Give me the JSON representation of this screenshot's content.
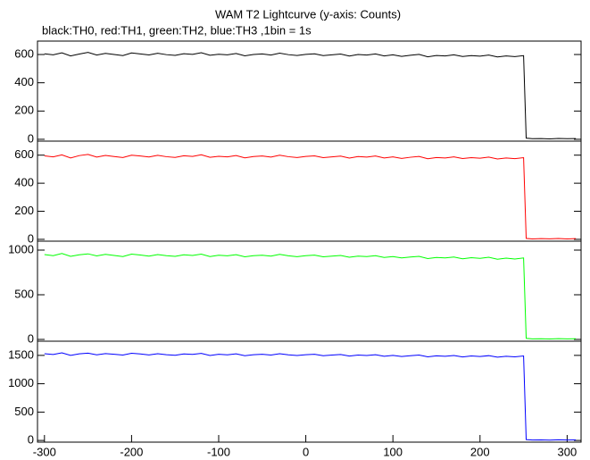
{
  "chart_data": [
    {
      "type": "line",
      "title": "WAM T2 Lightcurve (y-axis: Counts)",
      "subtitle": "black:TH0, red:TH1, green:TH2, blue:TH3 ,1bin = 1s",
      "x": [
        -300,
        -290,
        -280,
        -270,
        -260,
        -250,
        -240,
        -230,
        -220,
        -210,
        -200,
        -190,
        -180,
        -170,
        -160,
        -150,
        -140,
        -130,
        -120,
        -110,
        -100,
        -90,
        -80,
        -70,
        -60,
        -50,
        -40,
        -30,
        -20,
        -10,
        0,
        10,
        20,
        30,
        40,
        50,
        60,
        70,
        80,
        90,
        100,
        110,
        120,
        130,
        140,
        150,
        160,
        170,
        180,
        190,
        200,
        210,
        220,
        230,
        240,
        250,
        253,
        260,
        270,
        280,
        290,
        300,
        310
      ],
      "series": [
        {
          "color": "#000000",
          "values": [
            605,
            598,
            612,
            590,
            603,
            615,
            596,
            608,
            600,
            592,
            611,
            604,
            597,
            609,
            599,
            594,
            606,
            601,
            613,
            595,
            602,
            598,
            607,
            591,
            600,
            604,
            596,
            610,
            599,
            593,
            601,
            605,
            592,
            598,
            603,
            589,
            600,
            596,
            604,
            590,
            598,
            587,
            595,
            601,
            584,
            593,
            590,
            598,
            586,
            592,
            588,
            596,
            583,
            590,
            585,
            592,
            8,
            4,
            5,
            3,
            6,
            4,
            5
          ]
        }
      ],
      "xlim": [
        -308,
        316
      ],
      "ylim": [
        -13,
        695
      ],
      "yticks": [
        0,
        200,
        400,
        600
      ]
    },
    {
      "type": "line",
      "x": [
        -300,
        -290,
        -280,
        -270,
        -260,
        -250,
        -240,
        -230,
        -220,
        -210,
        -200,
        -190,
        -180,
        -170,
        -160,
        -150,
        -140,
        -130,
        -120,
        -110,
        -100,
        -90,
        -80,
        -70,
        -60,
        -50,
        -40,
        -30,
        -20,
        -10,
        0,
        10,
        20,
        30,
        40,
        50,
        60,
        70,
        80,
        90,
        100,
        110,
        120,
        130,
        140,
        150,
        160,
        170,
        180,
        190,
        200,
        210,
        220,
        230,
        240,
        250,
        253,
        260,
        270,
        280,
        290,
        300,
        310
      ],
      "series": [
        {
          "color": "#ff0000",
          "values": [
            595,
            588,
            602,
            580,
            597,
            605,
            586,
            598,
            590,
            583,
            600,
            594,
            587,
            599,
            589,
            584,
            596,
            591,
            603,
            585,
            592,
            588,
            597,
            581,
            590,
            594,
            586,
            600,
            589,
            583,
            591,
            595,
            582,
            588,
            593,
            579,
            590,
            586,
            594,
            580,
            588,
            577,
            585,
            591,
            574,
            583,
            580,
            588,
            576,
            582,
            578,
            586,
            573,
            580,
            575,
            582,
            7,
            3,
            5,
            4,
            6,
            3,
            5
          ]
        }
      ],
      "xlim": [
        -308,
        316
      ],
      "ylim": [
        -13,
        700
      ],
      "yticks": [
        0,
        200,
        400,
        600
      ]
    },
    {
      "type": "line",
      "x": [
        -300,
        -290,
        -280,
        -270,
        -260,
        -250,
        -240,
        -230,
        -220,
        -210,
        -200,
        -190,
        -180,
        -170,
        -160,
        -150,
        -140,
        -130,
        -120,
        -110,
        -100,
        -90,
        -80,
        -70,
        -60,
        -50,
        -40,
        -30,
        -20,
        -10,
        0,
        10,
        20,
        30,
        40,
        50,
        60,
        70,
        80,
        90,
        100,
        110,
        120,
        130,
        140,
        150,
        160,
        170,
        180,
        190,
        200,
        210,
        220,
        230,
        240,
        250,
        253,
        260,
        270,
        280,
        290,
        300,
        310
      ],
      "series": [
        {
          "color": "#00ff00",
          "values": [
            950,
            938,
            962,
            930,
            948,
            958,
            935,
            952,
            940,
            928,
            955,
            945,
            933,
            950,
            938,
            930,
            947,
            940,
            955,
            928,
            942,
            936,
            949,
            925,
            938,
            943,
            932,
            952,
            936,
            926,
            937,
            944,
            925,
            933,
            940,
            920,
            932,
            927,
            938,
            918,
            928,
            912,
            922,
            930,
            905,
            918,
            912,
            923,
            902,
            915,
            908,
            920,
            898,
            910,
            900,
            912,
            12,
            6,
            8,
            5,
            9,
            6,
            7
          ]
        }
      ],
      "xlim": [
        -308,
        316
      ],
      "ylim": [
        -20,
        1100
      ],
      "yticks": [
        0,
        500,
        1000
      ]
    },
    {
      "type": "line",
      "x": [
        -300,
        -290,
        -280,
        -270,
        -260,
        -250,
        -240,
        -230,
        -220,
        -210,
        -200,
        -190,
        -180,
        -170,
        -160,
        -150,
        -140,
        -130,
        -120,
        -110,
        -100,
        -90,
        -80,
        -70,
        -60,
        -50,
        -40,
        -30,
        -20,
        -10,
        0,
        10,
        20,
        30,
        40,
        50,
        60,
        70,
        80,
        90,
        100,
        110,
        120,
        130,
        140,
        150,
        160,
        170,
        180,
        190,
        200,
        210,
        220,
        230,
        240,
        250,
        253,
        260,
        270,
        280,
        290,
        300,
        310
      ],
      "series": [
        {
          "color": "#0000ff",
          "values": [
            1530,
            1515,
            1545,
            1500,
            1528,
            1540,
            1510,
            1532,
            1520,
            1505,
            1538,
            1525,
            1508,
            1530,
            1512,
            1502,
            1526,
            1518,
            1535,
            1498,
            1520,
            1510,
            1528,
            1495,
            1512,
            1520,
            1505,
            1530,
            1510,
            1498,
            1512,
            1520,
            1495,
            1505,
            1515,
            1488,
            1505,
            1498,
            1512,
            1485,
            1500,
            1480,
            1495,
            1505,
            1475,
            1492,
            1485,
            1498,
            1472,
            1490,
            1480,
            1495,
            1468,
            1485,
            1475,
            1490,
            15,
            8,
            10,
            6,
            12,
            8,
            9
          ]
        }
      ],
      "xlim": [
        -308,
        316
      ],
      "ylim": [
        -30,
        1750
      ],
      "yticks": [
        0,
        500,
        1000,
        1500
      ],
      "xticks": [
        -300,
        -200,
        -100,
        0,
        100,
        200,
        300
      ]
    }
  ]
}
